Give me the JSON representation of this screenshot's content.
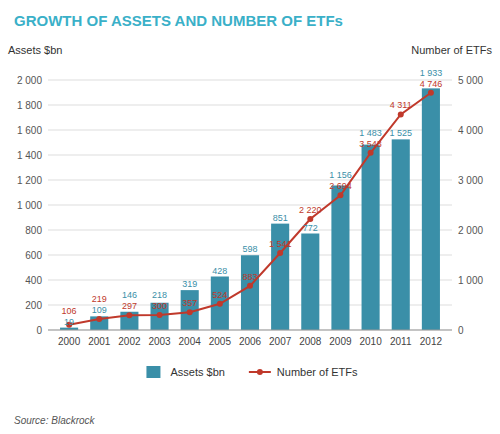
{
  "chart_data": {
    "type": "bar",
    "title": "GROWTH OF ASSETS AND NUMBER OF ETFs",
    "title_color": "#3ab0c8",
    "source": "Source: Blackrock",
    "ylabel": "Assets $bn",
    "y2label": "Number of ETFs",
    "x": [
      2000,
      2001,
      2002,
      2003,
      2004,
      2005,
      2006,
      2007,
      2008,
      2009,
      2010,
      2011,
      2012
    ],
    "xlim": [
      1999.3,
      2012.7
    ],
    "xticks": [
      2000,
      2001,
      2002,
      2003,
      2004,
      2005,
      2006,
      2007,
      2008,
      2009,
      2010,
      2011,
      2012
    ],
    "ylim": [
      0,
      2000
    ],
    "yticks": [
      0,
      200,
      400,
      600,
      800,
      {
        "value": 1000,
        "label": "1 000"
      },
      {
        "value": 1200,
        "label": "1 200"
      },
      {
        "value": 1400,
        "label": "1 400"
      },
      {
        "value": 1600,
        "label": "1 600"
      },
      {
        "value": 1800,
        "label": "1 800"
      },
      {
        "value": 2000,
        "label": "2 000"
      }
    ],
    "y2lim": [
      0,
      5000
    ],
    "y2ticks": [
      0,
      {
        "value": 1000,
        "label": "1 000"
      },
      {
        "value": 2000,
        "label": "2 000"
      },
      {
        "value": 3000,
        "label": "3 000"
      },
      {
        "value": 4000,
        "label": "4 000"
      },
      {
        "value": 5000,
        "label": "5 000"
      }
    ],
    "grid": true,
    "legend": "bottom",
    "data_labels": true,
    "series": [
      {
        "name": "Assets $bn",
        "type": "bar",
        "color": "#3a8fa8",
        "values": [
          19,
          109,
          146,
          218,
          319,
          428,
          598,
          851,
          772,
          1156,
          1483,
          1525,
          1933
        ],
        "value_labels": [
          "19",
          "109",
          "146",
          "218",
          "319",
          "428",
          "598",
          "851",
          "772",
          "1 156",
          "1 483",
          "1 525",
          "1 933"
        ]
      },
      {
        "name": "Number of ETFs",
        "type": "line",
        "axis": "y2",
        "color": "#c0392b",
        "marker": "circle",
        "values": [
          106,
          219,
          297,
          300,
          357,
          524,
          883,
          1541,
          2220,
          2694,
          3543,
          4311,
          4746
        ],
        "value_labels": [
          "106",
          "219",
          "297",
          "300",
          "357",
          "524",
          "883",
          "1 541",
          "2 220",
          "2 694",
          "3 543",
          "4 311",
          "4 746"
        ]
      }
    ]
  }
}
